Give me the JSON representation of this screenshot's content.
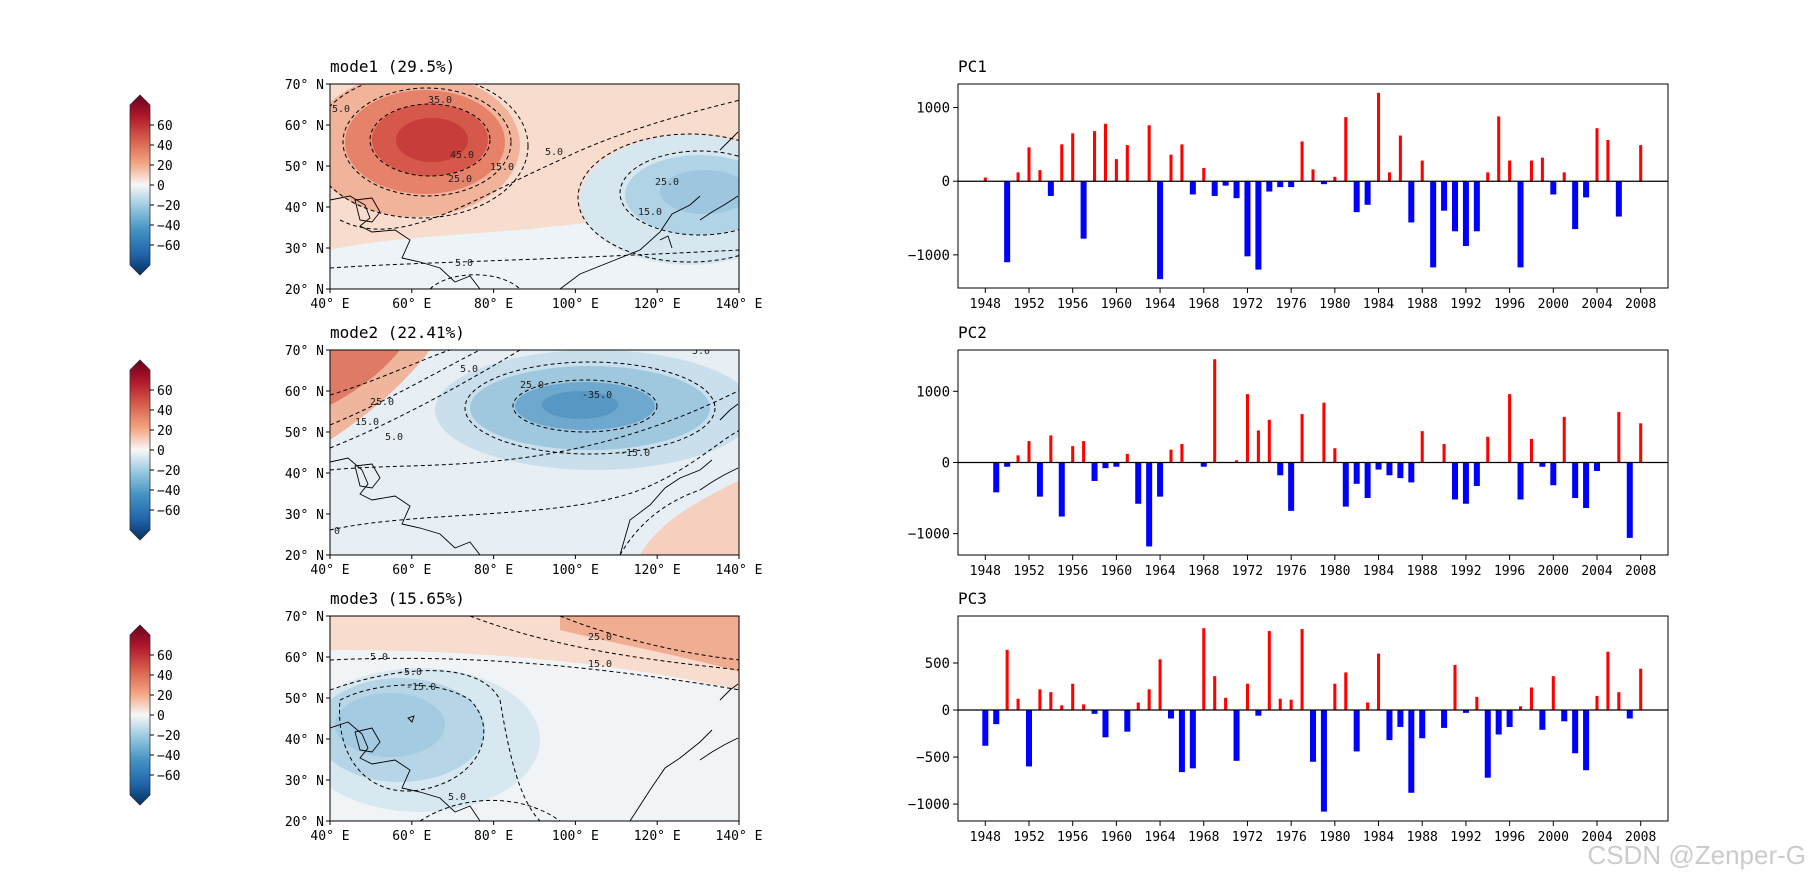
{
  "watermark": "CSDN @Zenper-G",
  "colorbar": {
    "ticks": [
      60,
      40,
      20,
      0,
      -20,
      -40,
      -60
    ],
    "tick_labels": [
      "60",
      "40",
      "20",
      "0",
      "−20",
      "−40",
      "−60"
    ],
    "range": [
      -80,
      80
    ],
    "colors": {
      "negative": "#053061",
      "zero": "#f7f7f7",
      "positive": "#67001f"
    }
  },
  "maps": [
    {
      "title": "mode1 (29.5%)",
      "contour_labels": [
        "35.0",
        "45.0",
        "25.0",
        "15.0",
        "5.0",
        "25.0",
        "15.0",
        "5.0",
        "5.0"
      ]
    },
    {
      "title": "mode2 (22.41%)",
      "contour_labels": [
        "25.0",
        "15.0",
        "5.0",
        "5.0",
        "25.0",
        "-35.0",
        "-15.0",
        "5.0",
        "0"
      ]
    },
    {
      "title": "mode3 (15.65%)",
      "contour_labels": [
        "25.0",
        "15.0",
        "5.0",
        "-5.0",
        "-15.0",
        "5.0"
      ]
    }
  ],
  "map_axes": {
    "lat_labels": [
      "70° N",
      "60° N",
      "50° N",
      "40° N",
      "30° N",
      "20° N"
    ],
    "lon_labels": [
      "40° E",
      "60° E",
      "80° E",
      "100° E",
      "120° E",
      "140° E"
    ],
    "lat_range": [
      20,
      70
    ],
    "lon_range": [
      40,
      140
    ]
  },
  "chart_data": [
    {
      "type": "bar",
      "title": "PC1",
      "xlabel": "",
      "ylabel": "",
      "xlim": [
        1945.5,
        2010.5
      ],
      "ylim": [
        -1450,
        1320
      ],
      "yticks": [
        1000,
        0,
        -1000
      ],
      "ytick_labels": [
        "1000",
        "0",
        "−1000"
      ],
      "xticks": [
        1948,
        1952,
        1956,
        1960,
        1964,
        1968,
        1972,
        1976,
        1980,
        1984,
        1988,
        1992,
        1996,
        2000,
        2004,
        2008
      ],
      "positive_color": "#ff0000",
      "negative_color": "#0000ff",
      "years": [
        1948,
        1949,
        1950,
        1951,
        1952,
        1953,
        1954,
        1955,
        1956,
        1957,
        1958,
        1959,
        1960,
        1961,
        1962,
        1963,
        1964,
        1965,
        1966,
        1967,
        1968,
        1969,
        1970,
        1971,
        1972,
        1973,
        1974,
        1975,
        1976,
        1977,
        1978,
        1979,
        1980,
        1981,
        1982,
        1983,
        1984,
        1985,
        1986,
        1987,
        1988,
        1989,
        1990,
        1991,
        1992,
        1993,
        1994,
        1995,
        1996,
        1997,
        1998,
        1999,
        2000,
        2001,
        2002,
        2003,
        2004,
        2005,
        2006,
        2007,
        2008
      ],
      "values": [
        50,
        0,
        -1100,
        120,
        460,
        150,
        -200,
        500,
        650,
        -780,
        680,
        780,
        300,
        490,
        0,
        760,
        -1330,
        360,
        500,
        -180,
        180,
        -200,
        -60,
        -230,
        -1020,
        -1200,
        -140,
        -80,
        -80,
        540,
        160,
        -40,
        60,
        870,
        -420,
        -320,
        1200,
        120,
        620,
        -560,
        280,
        -1170,
        -400,
        -680,
        -880,
        -680,
        120,
        880,
        280,
        -1170,
        280,
        320,
        -180,
        120,
        -650,
        -220,
        720,
        560,
        -480,
        0,
        490
      ]
    },
    {
      "type": "bar",
      "title": "PC2",
      "xlabel": "",
      "ylabel": "",
      "xlim": [
        1945.5,
        2010.5
      ],
      "ylim": [
        -1300,
        1580
      ],
      "yticks": [
        1000,
        0,
        -1000
      ],
      "ytick_labels": [
        "1000",
        "0",
        "−1000"
      ],
      "xticks": [
        1948,
        1952,
        1956,
        1960,
        1964,
        1968,
        1972,
        1976,
        1980,
        1984,
        1988,
        1992,
        1996,
        2000,
        2004,
        2008
      ],
      "positive_color": "#ff0000",
      "negative_color": "#0000ff",
      "years": [
        1948,
        1949,
        1950,
        1951,
        1952,
        1953,
        1954,
        1955,
        1956,
        1957,
        1958,
        1959,
        1960,
        1961,
        1962,
        1963,
        1964,
        1965,
        1966,
        1967,
        1968,
        1969,
        1970,
        1971,
        1972,
        1973,
        1974,
        1975,
        1976,
        1977,
        1978,
        1979,
        1980,
        1981,
        1982,
        1983,
        1984,
        1985,
        1986,
        1987,
        1988,
        1989,
        1990,
        1991,
        1992,
        1993,
        1994,
        1995,
        1996,
        1997,
        1998,
        1999,
        2000,
        2001,
        2002,
        2003,
        2004,
        2005,
        2006,
        2007,
        2008
      ],
      "values": [
        0,
        -420,
        -60,
        100,
        300,
        -480,
        380,
        -760,
        230,
        300,
        -260,
        -80,
        -60,
        120,
        -580,
        -1180,
        -480,
        180,
        260,
        0,
        -60,
        1450,
        0,
        30,
        960,
        450,
        600,
        -180,
        -680,
        680,
        0,
        840,
        200,
        -620,
        -300,
        -500,
        -100,
        -180,
        -220,
        -280,
        440,
        0,
        260,
        -520,
        -580,
        -330,
        360,
        0,
        960,
        -520,
        330,
        -60,
        -320,
        640,
        -500,
        -640,
        -120,
        0,
        710,
        -1060,
        550
      ]
    },
    {
      "type": "bar",
      "title": "PC3",
      "xlabel": "",
      "ylabel": "",
      "xlim": [
        1945.5,
        2010.5
      ],
      "ylim": [
        -1180,
        1000
      ],
      "yticks": [
        500,
        0,
        -500,
        -1000
      ],
      "ytick_labels": [
        "500",
        "0",
        "−500",
        "−1000"
      ],
      "xticks": [
        1948,
        1952,
        1956,
        1960,
        1964,
        1968,
        1972,
        1976,
        1980,
        1984,
        1988,
        1992,
        1996,
        2000,
        2004,
        2008
      ],
      "positive_color": "#ff0000",
      "negative_color": "#0000ff",
      "years": [
        1948,
        1949,
        1950,
        1951,
        1952,
        1953,
        1954,
        1955,
        1956,
        1957,
        1958,
        1959,
        1960,
        1961,
        1962,
        1963,
        1964,
        1965,
        1966,
        1967,
        1968,
        1969,
        1970,
        1971,
        1972,
        1973,
        1974,
        1975,
        1976,
        1977,
        1978,
        1979,
        1980,
        1981,
        1982,
        1983,
        1984,
        1985,
        1986,
        1987,
        1988,
        1989,
        1990,
        1991,
        1992,
        1993,
        1994,
        1995,
        1996,
        1997,
        1998,
        1999,
        2000,
        2001,
        2002,
        2003,
        2004,
        2005,
        2006,
        2007,
        2008
      ],
      "values": [
        -380,
        -150,
        640,
        120,
        -600,
        220,
        190,
        50,
        280,
        60,
        -40,
        -290,
        0,
        -230,
        80,
        220,
        540,
        -90,
        -660,
        -620,
        870,
        360,
        130,
        -540,
        280,
        -60,
        840,
        120,
        110,
        860,
        -550,
        -1080,
        280,
        400,
        -440,
        80,
        600,
        -320,
        -180,
        -880,
        -300,
        0,
        -190,
        480,
        -30,
        140,
        -720,
        -260,
        -180,
        40,
        240,
        -210,
        360,
        -120,
        -460,
        -640,
        150,
        620,
        190,
        -90,
        440
      ]
    }
  ]
}
